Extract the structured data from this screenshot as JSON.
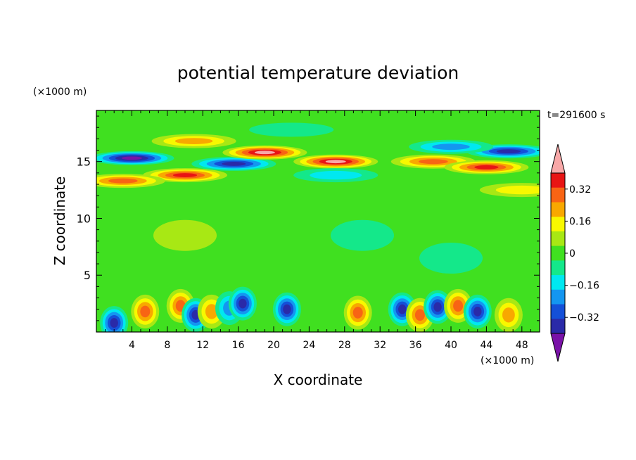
{
  "chart_data": {
    "type": "heatmap",
    "title": "potential temperature deviation",
    "xlabel": "X coordinate",
    "ylabel": "Z coordinate",
    "x_unit": "(×1000 m)",
    "y_unit": "(×1000 m)",
    "time_label": "t=291600 s",
    "xlim": [
      0,
      50
    ],
    "ylim": [
      0,
      19.5
    ],
    "x_ticks": [
      4,
      8,
      12,
      16,
      20,
      24,
      28,
      32,
      36,
      40,
      44,
      48
    ],
    "y_ticks": [
      5,
      10,
      15
    ],
    "colorbar": {
      "levels": [
        -0.48,
        -0.4,
        -0.32,
        -0.24,
        -0.16,
        -0.08,
        0,
        0.08,
        0.16,
        0.24,
        0.32,
        0.4,
        0.48
      ],
      "tick_labels": [
        "0.32",
        "0.16",
        "0",
        "−0.16",
        "−0.32"
      ],
      "tick_values": [
        0.32,
        0.16,
        0,
        -0.16,
        -0.32
      ],
      "colors": [
        "#7a12a8",
        "#2a2aa8",
        "#1450d8",
        "#1496f0",
        "#00e8f0",
        "#14e88a",
        "#40e020",
        "#a8e814",
        "#f8f800",
        "#f8a800",
        "#f86414",
        "#e81414",
        "#f8a8a8"
      ],
      "extend": "both"
    },
    "features": [
      {
        "x": 2,
        "z": 0.8,
        "value": -0.4
      },
      {
        "x": 5.5,
        "z": 1.8,
        "value": 0.28
      },
      {
        "x": 9.5,
        "z": 2.3,
        "value": 0.3
      },
      {
        "x": 11.2,
        "z": 1.5,
        "value": -0.38
      },
      {
        "x": 13,
        "z": 1.8,
        "value": 0.26
      },
      {
        "x": 15,
        "z": 2.1,
        "value": -0.2
      },
      {
        "x": 16.5,
        "z": 2.5,
        "value": -0.36
      },
      {
        "x": 21.5,
        "z": 2.0,
        "value": -0.4
      },
      {
        "x": 29.5,
        "z": 1.7,
        "value": 0.28
      },
      {
        "x": 34.5,
        "z": 2.0,
        "value": -0.42
      },
      {
        "x": 36.5,
        "z": 1.5,
        "value": 0.3
      },
      {
        "x": 38.5,
        "z": 2.2,
        "value": -0.38
      },
      {
        "x": 40.8,
        "z": 2.3,
        "value": 0.32
      },
      {
        "x": 43,
        "z": 1.8,
        "value": -0.36
      },
      {
        "x": 46.5,
        "z": 1.5,
        "value": 0.2
      },
      {
        "x": 4,
        "z": 15.3,
        "value": -0.48
      },
      {
        "x": 11,
        "z": 16.8,
        "value": 0.24
      },
      {
        "x": 10,
        "z": 13.8,
        "value": 0.36
      },
      {
        "x": 3,
        "z": 13.3,
        "value": 0.28
      },
      {
        "x": 15.5,
        "z": 14.8,
        "value": -0.42
      },
      {
        "x": 19,
        "z": 15.8,
        "value": 0.44
      },
      {
        "x": 27,
        "z": 15.0,
        "value": 0.46
      },
      {
        "x": 27,
        "z": 13.8,
        "value": -0.12
      },
      {
        "x": 38,
        "z": 15.0,
        "value": 0.34
      },
      {
        "x": 44,
        "z": 14.5,
        "value": 0.36
      },
      {
        "x": 46.5,
        "z": 15.9,
        "value": -0.42
      },
      {
        "x": 40,
        "z": 16.3,
        "value": -0.22
      },
      {
        "x": 48,
        "z": 12.5,
        "value": 0.18
      },
      {
        "x": 22,
        "z": 17.8,
        "value": -0.06
      },
      {
        "x": 30,
        "z": 8.5,
        "value": -0.07
      },
      {
        "x": 10,
        "z": 8.5,
        "value": 0.05
      },
      {
        "x": 40,
        "z": 6.5,
        "value": -0.06
      }
    ]
  }
}
